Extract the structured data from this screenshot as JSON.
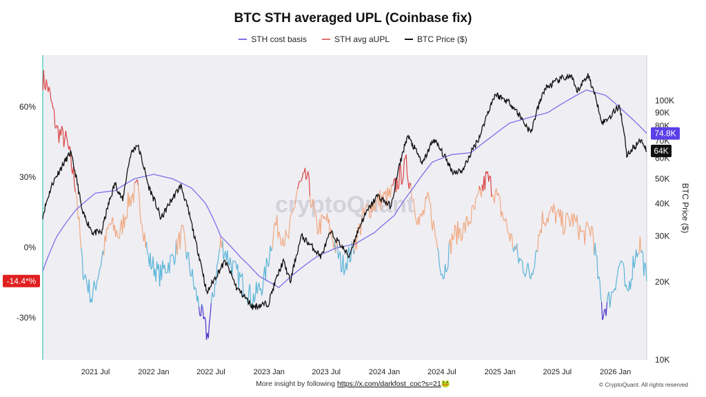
{
  "chart_data": {
    "type": "line",
    "title": "BTC STH averaged UPL (Coinbase fix)",
    "watermark": "cryptoQuant",
    "x_tick_labels": [
      "2021 Jul",
      "2022 Jan",
      "2022 Jul",
      "2023 Jan",
      "2023 Jul",
      "2024 Jan",
      "2024 Jul",
      "2025 Jan",
      "2025 Jul",
      "2026 Jan"
    ],
    "x_range": [
      "2021-01-15",
      "2026-04-10"
    ],
    "left_axis": {
      "tick_labels": [
        "60%",
        "30%",
        "0%",
        "-30%"
      ],
      "range": [
        -0.48,
        0.82
      ]
    },
    "right_axis": {
      "title": "BTC Price ($)",
      "scale": "log",
      "tick_labels": [
        "100K",
        "90K",
        "80K",
        "70K",
        "60K",
        "50K",
        "40K",
        "30K",
        "20K",
        "10K"
      ],
      "range": [
        10000,
        150000
      ]
    },
    "grid": false,
    "legend_placement": "top-center",
    "series": [
      {
        "name": "STH cost basis",
        "axis": "right",
        "color": "#7b6ee8",
        "x": [
          "2021-01-15",
          "2021-03-01",
          "2021-05-01",
          "2021-07-01",
          "2021-09-01",
          "2021-11-01",
          "2022-01-01",
          "2022-03-01",
          "2022-05-01",
          "2022-06-15",
          "2022-08-01",
          "2022-10-01",
          "2022-12-01",
          "2023-02-01",
          "2023-04-01",
          "2023-06-01",
          "2023-08-01",
          "2023-10-01",
          "2023-12-01",
          "2024-02-01",
          "2024-04-01",
          "2024-06-01",
          "2024-08-01",
          "2024-10-01",
          "2024-12-01",
          "2025-02-01",
          "2025-04-01",
          "2025-06-01",
          "2025-08-01",
          "2025-10-01",
          "2025-12-01",
          "2026-02-01",
          "2026-04-10"
        ],
        "values": [
          22000,
          30000,
          38000,
          44000,
          45000,
          50000,
          52000,
          50000,
          46000,
          40000,
          30000,
          25000,
          21000,
          19000,
          22000,
          25000,
          27000,
          28000,
          31000,
          36000,
          46000,
          58000,
          62000,
          63000,
          72000,
          82000,
          86000,
          90000,
          100000,
          110000,
          105000,
          90000,
          74800
        ]
      },
      {
        "name": "STH avg aUPL",
        "axis": "left",
        "color_scale": {
          "low": "#4a33c9",
          "mid_low": "#5ab4d8",
          "mid_high": "#f0a880",
          "high": "#d94444"
        },
        "x": [
          "2021-01-15",
          "2021-02-01",
          "2021-03-01",
          "2021-04-01",
          "2021-05-01",
          "2021-05-20",
          "2021-06-20",
          "2021-07-15",
          "2021-08-15",
          "2021-09-15",
          "2021-10-15",
          "2021-11-10",
          "2021-12-15",
          "2022-01-20",
          "2022-03-01",
          "2022-04-01",
          "2022-05-15",
          "2022-06-20",
          "2022-08-01",
          "2022-09-15",
          "2022-11-10",
          "2022-12-15",
          "2023-01-20",
          "2023-03-01",
          "2023-04-01",
          "2023-05-01",
          "2023-06-01",
          "2023-07-01",
          "2023-08-20",
          "2023-09-20",
          "2023-11-01",
          "2023-12-15",
          "2024-01-20",
          "2024-03-10",
          "2024-04-20",
          "2024-05-20",
          "2024-07-05",
          "2024-08-05",
          "2024-09-10",
          "2024-10-10",
          "2024-11-20",
          "2024-12-20",
          "2025-02-01",
          "2025-03-01",
          "2025-04-08",
          "2025-05-15",
          "2025-06-20",
          "2025-07-20",
          "2025-08-20",
          "2025-09-20",
          "2025-10-20",
          "2025-11-21",
          "2025-12-20",
          "2026-01-20",
          "2026-02-06",
          "2026-03-01",
          "2026-03-20",
          "2026-04-10"
        ],
        "values": [
          0.72,
          0.68,
          0.5,
          0.45,
          0.25,
          -0.08,
          -0.22,
          -0.08,
          0.1,
          0.05,
          0.2,
          0.25,
          -0.05,
          -0.12,
          -0.05,
          0.06,
          -0.2,
          -0.38,
          0.02,
          -0.1,
          -0.22,
          -0.15,
          0.1,
          0.02,
          0.25,
          0.3,
          0.08,
          0.12,
          -0.08,
          -0.02,
          0.15,
          0.2,
          0.22,
          0.35,
          0.1,
          0.2,
          -0.12,
          0.05,
          0.08,
          0.15,
          0.3,
          0.22,
          0.05,
          -0.05,
          -0.12,
          0.12,
          0.15,
          0.1,
          0.12,
          0.05,
          0.08,
          -0.28,
          -0.2,
          -0.05,
          -0.22,
          -0.05,
          0.02,
          -0.144
        ]
      },
      {
        "name": "BTC Price ($)",
        "axis": "right",
        "color": "#111111",
        "x": [
          "2021-01-15",
          "2021-02-15",
          "2021-04-13",
          "2021-05-20",
          "2021-06-22",
          "2021-07-20",
          "2021-09-01",
          "2021-09-25",
          "2021-10-20",
          "2021-11-10",
          "2021-12-15",
          "2022-01-24",
          "2022-03-28",
          "2022-05-12",
          "2022-06-18",
          "2022-08-15",
          "2022-09-20",
          "2022-11-10",
          "2022-12-30",
          "2023-02-15",
          "2023-03-10",
          "2023-04-14",
          "2023-06-15",
          "2023-07-15",
          "2023-09-11",
          "2023-10-25",
          "2023-12-10",
          "2024-01-23",
          "2024-03-14",
          "2024-05-01",
          "2024-06-05",
          "2024-08-05",
          "2024-09-06",
          "2024-10-29",
          "2024-12-17",
          "2025-02-03",
          "2025-04-08",
          "2025-05-22",
          "2025-07-14",
          "2025-08-14",
          "2025-09-01",
          "2025-10-06",
          "2025-11-21",
          "2025-12-15",
          "2026-01-14",
          "2026-02-06",
          "2026-03-01",
          "2026-03-25",
          "2026-04-10"
        ],
        "values": [
          36000,
          48000,
          63000,
          37000,
          31000,
          31000,
          48000,
          41000,
          62000,
          68000,
          47000,
          35000,
          47000,
          29000,
          18000,
          24000,
          19000,
          16000,
          16500,
          24000,
          20000,
          30000,
          25000,
          31000,
          25000,
          35000,
          43000,
          39000,
          73000,
          57000,
          71000,
          53000,
          54000,
          73000,
          106000,
          98000,
          75000,
          111000,
          122000,
          124000,
          108000,
          126000,
          82000,
          87000,
          96000,
          62000,
          66000,
          71000,
          64000
        ]
      }
    ],
    "badges": [
      {
        "label": "74.8K",
        "color": "#5b3fe8"
      },
      {
        "label": "64K",
        "color": "#111111"
      },
      {
        "label": "-14.4*%",
        "color": "#e02020"
      }
    ]
  },
  "footer": {
    "note": "More insight by following ",
    "link": "https://x.com/darkfost_coc?s=21",
    "emoji": "🐸",
    "copyright": "© CryptoQuant. All rights reserved"
  }
}
